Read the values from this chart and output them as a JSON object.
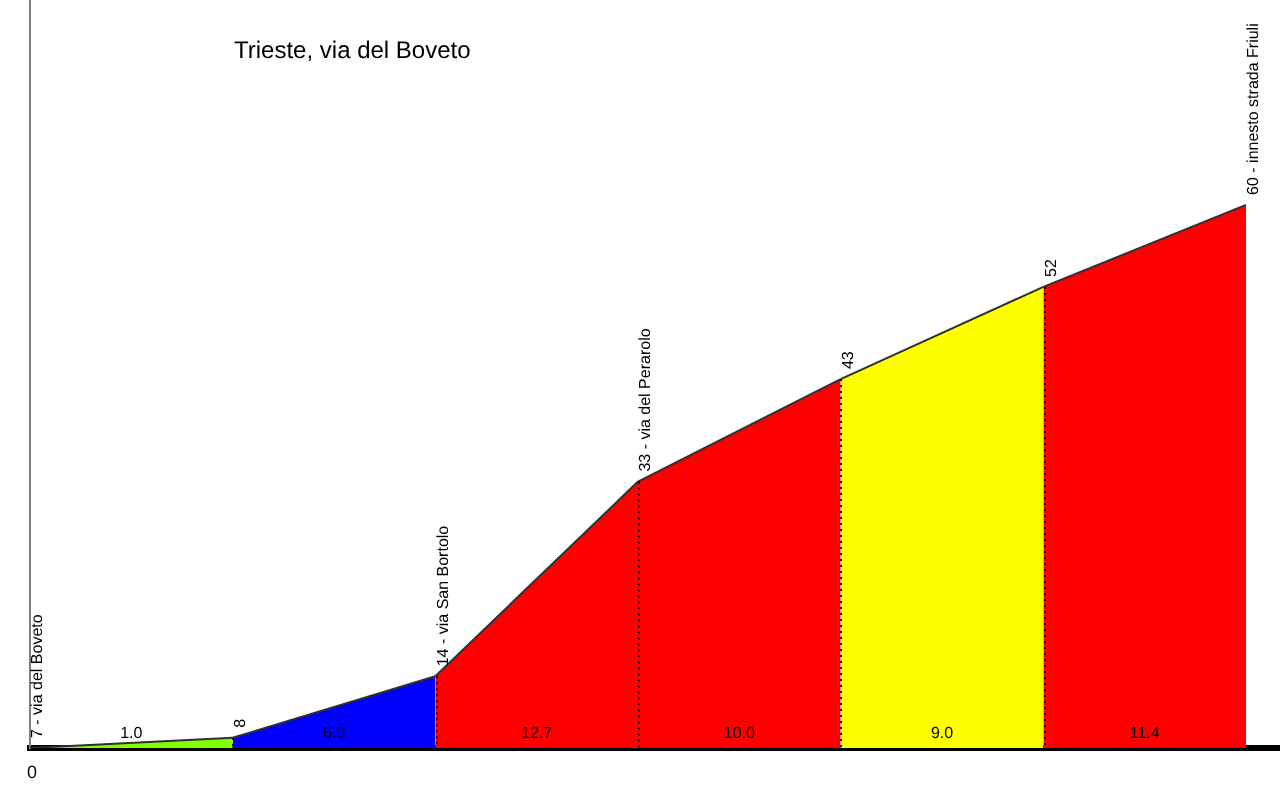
{
  "chart_data": {
    "type": "area",
    "title": "Trieste, via del Boveto",
    "categories": [
      null,
      null,
      null,
      null,
      null,
      null,
      null
    ],
    "ylim": [
      7,
      80
    ],
    "tick_labels": false,
    "legend": false,
    "series": [
      {
        "color": "#80ff00",
        "values": [
          7,
          8,
          null,
          null,
          null,
          null,
          null
        ],
        "value_labels": [
          "7 - via del Boveto",
          "8",
          null,
          null,
          null,
          null,
          null
        ]
      },
      {
        "color": "#0000ff",
        "values": [
          null,
          8,
          14,
          null,
          null,
          null,
          null
        ],
        "value_labels": [
          null,
          null,
          "14 - via San Bortolo",
          null,
          null,
          null,
          null
        ]
      },
      {
        "color": "#ff0000",
        "values": [
          null,
          null,
          14,
          33,
          null,
          null,
          null
        ],
        "value_labels": [
          null,
          null,
          null,
          "33 - via del Perarolo",
          null,
          null,
          null
        ]
      },
      {
        "color": "#ff0000",
        "values": [
          null,
          null,
          null,
          33,
          43,
          null,
          null
        ],
        "value_labels": [
          null,
          null,
          null,
          null,
          "43",
          null,
          null
        ]
      },
      {
        "color": "#ffff00",
        "values": [
          null,
          null,
          null,
          null,
          43,
          52,
          null
        ],
        "value_labels": [
          null,
          null,
          null,
          null,
          null,
          "52",
          null
        ]
      },
      {
        "color": "#ff0000",
        "values": [
          null,
          null,
          null,
          null,
          null,
          52,
          60
        ],
        "value_labels": [
          null,
          null,
          null,
          null,
          null,
          null,
          "60 - innesto strada Friuli"
        ]
      }
    ],
    "annotations": [
      "0",
      "1.0",
      "6.0",
      "12.7",
      "10.0",
      "9.0",
      "11.4"
    ]
  }
}
